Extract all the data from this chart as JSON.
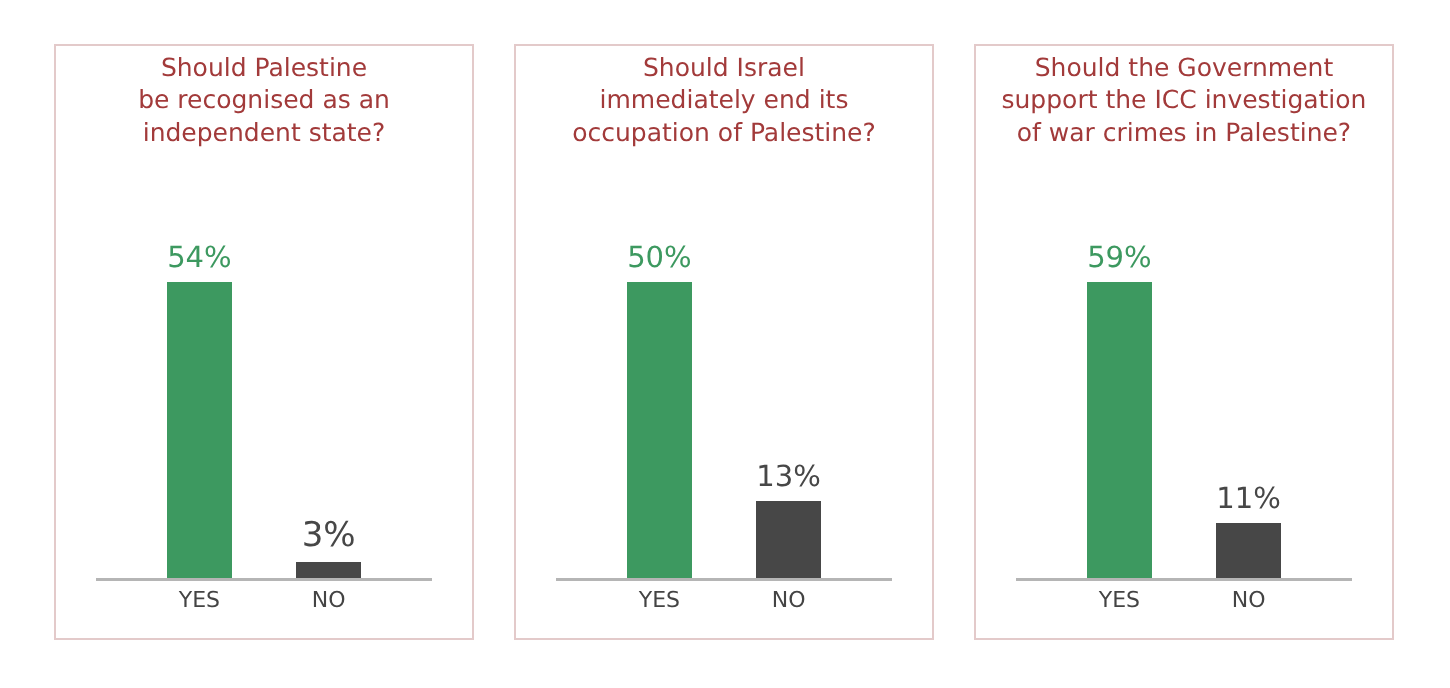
{
  "chart_data": [
    {
      "type": "bar",
      "title": "Should Palestine\nbe recognised as an\nindependent state?",
      "categories": [
        "YES",
        "NO"
      ],
      "values": [
        54,
        3
      ],
      "value_labels": [
        "54%",
        "3%"
      ],
      "colors": [
        "#3d9960",
        "#474747"
      ]
    },
    {
      "type": "bar",
      "title": "Should Israel\nimmediately end its\noccupation of Palestine?",
      "categories": [
        "YES",
        "NO"
      ],
      "values": [
        50,
        13
      ],
      "value_labels": [
        "50%",
        "13%"
      ],
      "colors": [
        "#3d9960",
        "#474747"
      ]
    },
    {
      "type": "bar",
      "title": "Should the Government\nsupport the ICC investigation\nof war crimes in Palestine?",
      "categories": [
        "YES",
        "NO"
      ],
      "values": [
        59,
        11
      ],
      "value_labels": [
        "59%",
        "11%"
      ],
      "colors": [
        "#3d9960",
        "#474747"
      ]
    }
  ]
}
